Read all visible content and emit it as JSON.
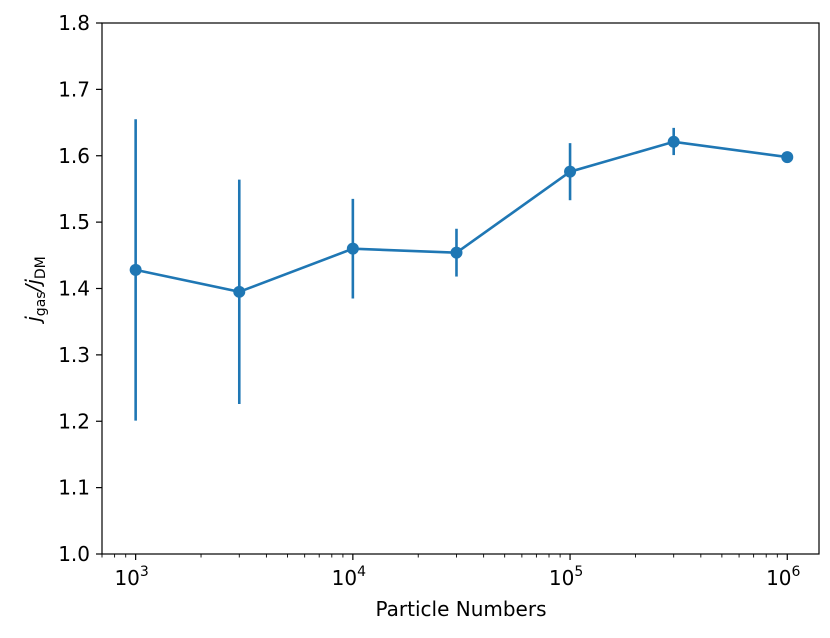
{
  "chart_data": {
    "type": "scatter",
    "xscale": "log",
    "xlim": [
      700,
      1400000
    ],
    "ylim": [
      1.0,
      1.8
    ],
    "xlabel": "Particle Numbers",
    "ylabel": {
      "base": "j",
      "sub1": "gas",
      "sep": "/",
      "base2": "j",
      "sub2": "DM"
    },
    "yticks": [
      "1.0",
      "1.1",
      "1.2",
      "1.3",
      "1.4",
      "1.5",
      "1.6",
      "1.7",
      "1.8"
    ],
    "xticks": [
      {
        "value": 1000,
        "base": "10",
        "exp": "3"
      },
      {
        "value": 10000,
        "base": "10",
        "exp": "4"
      },
      {
        "value": 100000,
        "base": "10",
        "exp": "5"
      },
      {
        "value": 1000000,
        "base": "10",
        "exp": "6"
      }
    ],
    "grid": false,
    "series": [
      {
        "color": "#1f77b4",
        "marker": "circle",
        "line": true,
        "x": [
          1000,
          3000,
          10000,
          30000,
          100000,
          300000,
          1000000
        ],
        "y": [
          1.428,
          1.395,
          1.46,
          1.454,
          1.576,
          1.621,
          1.598
        ],
        "yerr_low": [
          1.201,
          1.226,
          1.385,
          1.418,
          1.533,
          1.601,
          1.59
        ],
        "yerr_high": [
          1.655,
          1.564,
          1.535,
          1.49,
          1.619,
          1.642,
          1.606
        ]
      }
    ]
  }
}
